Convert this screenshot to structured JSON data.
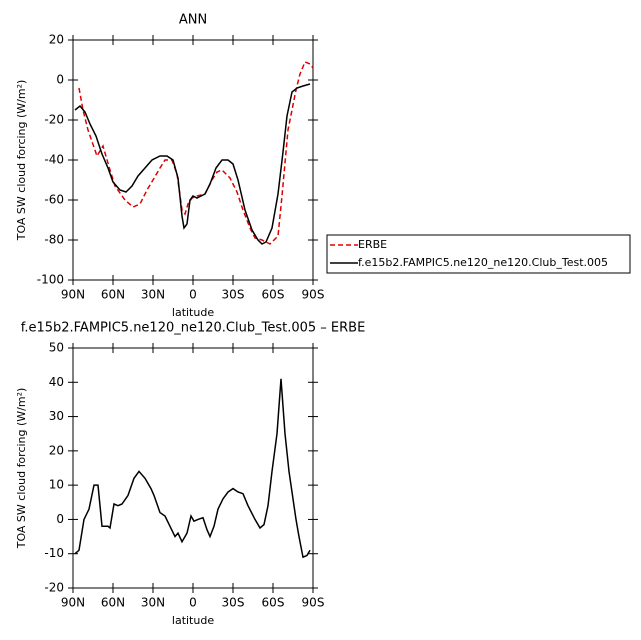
{
  "chart_data": [
    {
      "type": "line",
      "title": "ANN",
      "y_label": "TOA SW cloud forcing (W/m²)",
      "x_label": "latitude",
      "xlim": [
        90,
        -90
      ],
      "ylim": [
        -100,
        20
      ],
      "xticks": [
        {
          "value": 90,
          "label": "90N"
        },
        {
          "value": 60,
          "label": "60N"
        },
        {
          "value": 30,
          "label": "30N"
        },
        0,
        {
          "value": -30,
          "label": "30S"
        },
        {
          "value": -60,
          "label": "60S"
        },
        {
          "value": -90,
          "label": "90S"
        }
      ],
      "yticks": [
        -100,
        -80,
        -60,
        -40,
        -20,
        0,
        20
      ],
      "legend": "right",
      "series": [
        {
          "name": "ERBE",
          "color": "#e00000",
          "line_style": "dashed",
          "x": [
            85.5,
            82.5,
            78.75,
            72,
            67.5,
            62.25,
            58.5,
            51,
            45,
            39.75,
            34.5,
            30,
            24.75,
            21,
            15.75,
            12,
            8.25,
            6,
            3.75,
            0.75,
            -3,
            -9,
            -14.25,
            -18,
            -21.75,
            -27.75,
            -33,
            -37.5,
            -42.75,
            -46.5,
            -51.75,
            -57.75,
            -63.75,
            -66.75,
            -71.25,
            -77.25,
            -80.25,
            -84,
            -87.75,
            -90
          ],
          "values": [
            -4,
            -15,
            -25,
            -38,
            -33,
            -45,
            -53,
            -60,
            -63.5,
            -62,
            -55,
            -50,
            -44,
            -40,
            -40,
            -47,
            -65,
            -67,
            -62,
            -59,
            -58,
            -57,
            -50,
            -46,
            -45,
            -49,
            -56,
            -65,
            -74,
            -79,
            -80,
            -82,
            -78,
            -58,
            -25,
            -5,
            3,
            9,
            8,
            6
          ]
        },
        {
          "name": "f.e15b2.FAMPIC5.ne120_ne120.Club_Test.005",
          "color": "#000000",
          "line_style": "solid",
          "x": [
            88.5,
            84.75,
            81,
            77.25,
            72.75,
            68.25,
            63.75,
            60,
            54.75,
            50.25,
            45.75,
            41.25,
            36,
            30.75,
            24.75,
            19.5,
            15,
            11.25,
            8.25,
            6.75,
            4.5,
            2.25,
            0,
            -3,
            -9,
            -12.75,
            -17.25,
            -21.75,
            -26.25,
            -30,
            -33.75,
            -39,
            -44.25,
            -48.75,
            -51.75,
            -54.75,
            -59.25,
            -63.75,
            -67.5,
            -70.5,
            -74.25,
            -78,
            -82.5,
            -87.75
          ],
          "values": [
            -15,
            -13,
            -16,
            -22,
            -28,
            -37,
            -44,
            -51,
            -55,
            -56,
            -53,
            -48,
            -44,
            -40,
            -38,
            -38,
            -40,
            -49,
            -68,
            -74,
            -72,
            -60,
            -58,
            -59,
            -57,
            -52,
            -44,
            -40,
            -40,
            -42,
            -50,
            -65,
            -75,
            -80,
            -82,
            -81,
            -74,
            -57,
            -36,
            -18,
            -6,
            -4,
            -3,
            -2
          ]
        }
      ]
    },
    {
      "type": "line",
      "title": "f.e15b2.FAMPIC5.ne120_ne120.Club_Test.005 – ERBE",
      "y_label": "TOA SW cloud forcing (W/m²)",
      "x_label": "latitude",
      "xlim": [
        90,
        -90
      ],
      "ylim": [
        -20,
        50
      ],
      "xticks": [
        {
          "value": 90,
          "label": "90N"
        },
        {
          "value": 60,
          "label": "60N"
        },
        {
          "value": 30,
          "label": "30N"
        },
        0,
        {
          "value": -30,
          "label": "30S"
        },
        {
          "value": -60,
          "label": "60S"
        },
        {
          "value": -90,
          "label": "90S"
        }
      ],
      "yticks": [
        -20,
        -10,
        0,
        10,
        20,
        30,
        40,
        50
      ],
      "series": [
        {
          "color": "#000000",
          "line_style": "solid",
          "x": [
            88.5,
            85.5,
            81.75,
            78,
            74.25,
            71.25,
            68.25,
            63.75,
            62.25,
            59.25,
            56.25,
            53.25,
            48.75,
            44.25,
            40.5,
            36,
            31.5,
            29.25,
            24.75,
            21,
            17.25,
            13.5,
            11.25,
            8.25,
            4.5,
            1.5,
            -0.75,
            -3.75,
            -7.5,
            -10.5,
            -12.75,
            -15.75,
            -18.75,
            -22.5,
            -26.25,
            -30,
            -33.75,
            -37.5,
            -41.25,
            -46.5,
            -50.25,
            -53.25,
            -56.25,
            -59.25,
            -63,
            -66,
            -69,
            -72,
            -75,
            -77.25,
            -79.5,
            -82.5,
            -85.5,
            -87.75
          ],
          "values": [
            -10,
            -9,
            0,
            3,
            10,
            10,
            -2,
            -2,
            -2.5,
            4.5,
            4,
            4.5,
            7,
            12,
            14,
            12,
            9,
            7,
            2,
            1,
            -2,
            -5,
            -4,
            -6.5,
            -4,
            1,
            -0.5,
            0,
            0.5,
            -3,
            -5,
            -2,
            3,
            6,
            8,
            9,
            8,
            7.5,
            4,
            0,
            -2.5,
            -1.5,
            4,
            14,
            25,
            41,
            25,
            14,
            6,
            0,
            -5,
            -11,
            -10.5,
            -9
          ]
        }
      ]
    }
  ]
}
